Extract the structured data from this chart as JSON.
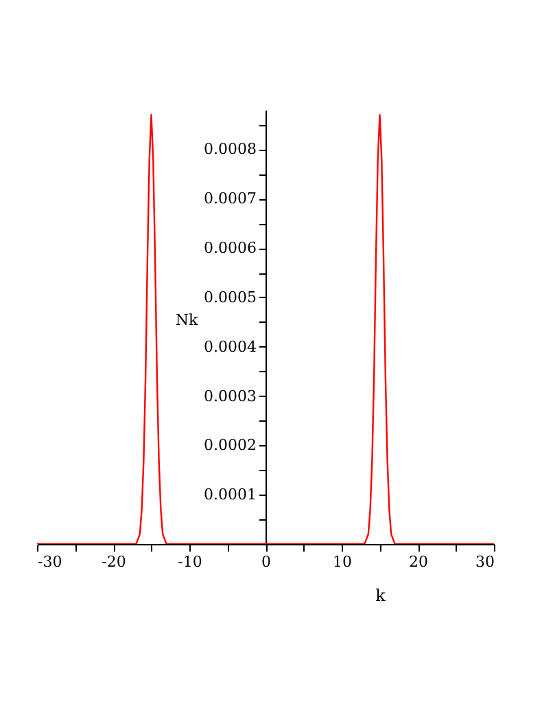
{
  "chart_data": {
    "type": "line",
    "xlabel": "k",
    "ylabel": "Nk",
    "xlim": [
      -30,
      30
    ],
    "ylim": [
      0,
      0.00088
    ],
    "xticks": [
      -30,
      {
        "value": -25,
        "label": null
      },
      -20,
      {
        "value": -15,
        "label": null
      },
      -10,
      {
        "value": -5,
        "label": null
      },
      0,
      {
        "value": 5,
        "label": null
      },
      10,
      {
        "value": 15,
        "label": null
      },
      20,
      {
        "value": 25,
        "label": null
      },
      30
    ],
    "yticks": [
      {
        "value": 5e-05,
        "label": null
      },
      0.0001,
      {
        "value": 0.00015,
        "label": null
      },
      0.0002,
      {
        "value": 0.00025,
        "label": null
      },
      0.0003,
      {
        "value": 0.00035,
        "label": null
      },
      0.0004,
      {
        "value": 0.00045,
        "label": null
      },
      0.0005,
      {
        "value": 0.00055,
        "label": null
      },
      0.0006,
      {
        "value": 0.00065,
        "label": null
      },
      0.0007,
      {
        "value": 0.00075,
        "label": null
      },
      0.0008,
      {
        "value": 0.00085,
        "label": null
      }
    ],
    "grid": false,
    "legend": false,
    "marker": "none",
    "line_style": "solid",
    "series": [
      {
        "color": "#ff0000",
        "x": [
          -30,
          -17,
          -16.75,
          -16.5,
          -16.25,
          -16,
          -15.75,
          -15.5,
          -15.25,
          -15,
          -14.75,
          -14.5,
          -14.25,
          -14,
          -13.75,
          -13.5,
          -13.25,
          -13,
          13,
          13.25,
          13.5,
          13.75,
          14,
          14.25,
          14.5,
          14.75,
          15,
          15.25,
          15.5,
          15.75,
          16,
          16.25,
          16.5,
          16.75,
          17,
          30
        ],
        "values": [
          0,
          0,
          1e-05,
          2e-05,
          7e-05,
          0.00017,
          0.00034,
          0.00058,
          0.00078,
          0.00087,
          0.00078,
          0.00058,
          0.00034,
          0.00017,
          7e-05,
          2e-05,
          1e-05,
          0,
          0,
          1e-05,
          2e-05,
          7e-05,
          0.00017,
          0.00034,
          0.00058,
          0.00078,
          0.00087,
          0.00078,
          0.00058,
          0.00034,
          0.00017,
          7e-05,
          2e-05,
          1e-05,
          0,
          0
        ]
      }
    ]
  }
}
